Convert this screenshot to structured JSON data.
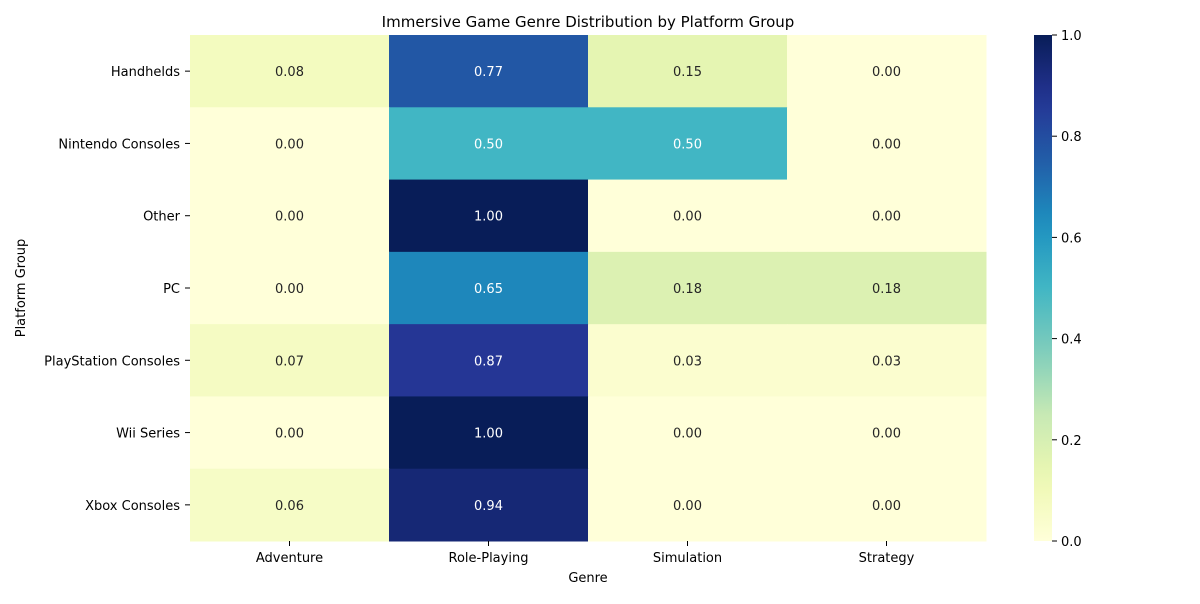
{
  "chart_data": {
    "type": "heatmap",
    "title": "Immersive Game Genre Distribution by Platform Group",
    "xlabel": "Genre",
    "ylabel": "Platform Group",
    "columns": [
      "Adventure",
      "Role-Playing",
      "Simulation",
      "Strategy"
    ],
    "rows": [
      "Handhelds",
      "Nintendo Consoles",
      "Other",
      "PC",
      "PlayStation Consoles",
      "Wii Series",
      "Xbox Consoles"
    ],
    "values": [
      [
        0.08,
        0.77,
        0.15,
        0.0
      ],
      [
        0.0,
        0.5,
        0.5,
        0.0
      ],
      [
        0.0,
        1.0,
        0.0,
        0.0
      ],
      [
        0.0,
        0.65,
        0.18,
        0.18
      ],
      [
        0.07,
        0.87,
        0.03,
        0.03
      ],
      [
        0.0,
        1.0,
        0.0,
        0.0
      ],
      [
        0.06,
        0.94,
        0.0,
        0.0
      ]
    ],
    "value_format": "0.00",
    "colormap": "YlGnBu",
    "vmin": 0.0,
    "vmax": 1.0,
    "colorbar_ticks": [
      "0.0",
      "0.2",
      "0.4",
      "0.6",
      "0.8",
      "1.0"
    ],
    "colors": {
      "low": "#ffffd9",
      "high": "#081d58",
      "text_dark": "#262626",
      "text_light": "#ffffff"
    }
  }
}
